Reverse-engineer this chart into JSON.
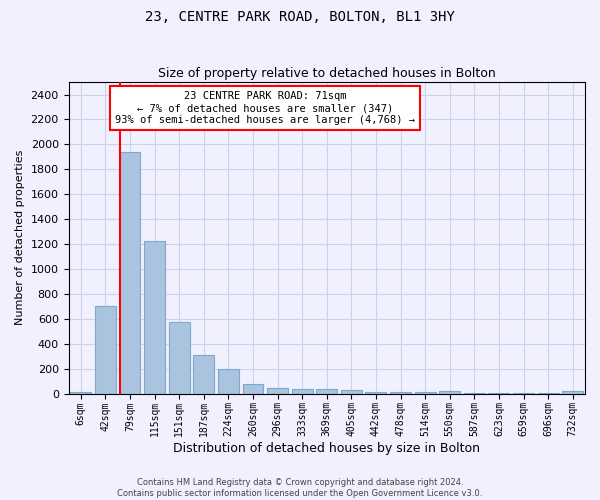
{
  "title": "23, CENTRE PARK ROAD, BOLTON, BL1 3HY",
  "subtitle": "Size of property relative to detached houses in Bolton",
  "xlabel": "Distribution of detached houses by size in Bolton",
  "ylabel": "Number of detached properties",
  "annotation_line1": "23 CENTRE PARK ROAD: 71sqm",
  "annotation_line2": "← 7% of detached houses are smaller (347)",
  "annotation_line3": "93% of semi-detached houses are larger (4,768) →",
  "footer_line1": "Contains HM Land Registry data © Crown copyright and database right 2024.",
  "footer_line2": "Contains public sector information licensed under the Open Government Licence v3.0.",
  "categories": [
    "6sqm",
    "42sqm",
    "79sqm",
    "115sqm",
    "151sqm",
    "187sqm",
    "224sqm",
    "260sqm",
    "296sqm",
    "333sqm",
    "369sqm",
    "405sqm",
    "442sqm",
    "478sqm",
    "514sqm",
    "550sqm",
    "587sqm",
    "623sqm",
    "659sqm",
    "696sqm",
    "732sqm"
  ],
  "values": [
    15,
    700,
    1940,
    1225,
    575,
    310,
    200,
    80,
    47,
    37,
    37,
    27,
    15,
    15,
    15,
    20,
    5,
    5,
    5,
    5,
    20
  ],
  "bar_color": "#aac4e0",
  "bar_edge_color": "#7aaac8",
  "vline_color": "red",
  "vline_x": 2.0,
  "ylim": [
    0,
    2500
  ],
  "yticks": [
    0,
    200,
    400,
    600,
    800,
    1000,
    1200,
    1400,
    1600,
    1800,
    2000,
    2200,
    2400
  ],
  "grid_color": "#d0d0e8",
  "background_color": "#f0f0ff",
  "annotation_box_color": "red",
  "figsize": [
    6.0,
    5.0
  ],
  "dpi": 100
}
